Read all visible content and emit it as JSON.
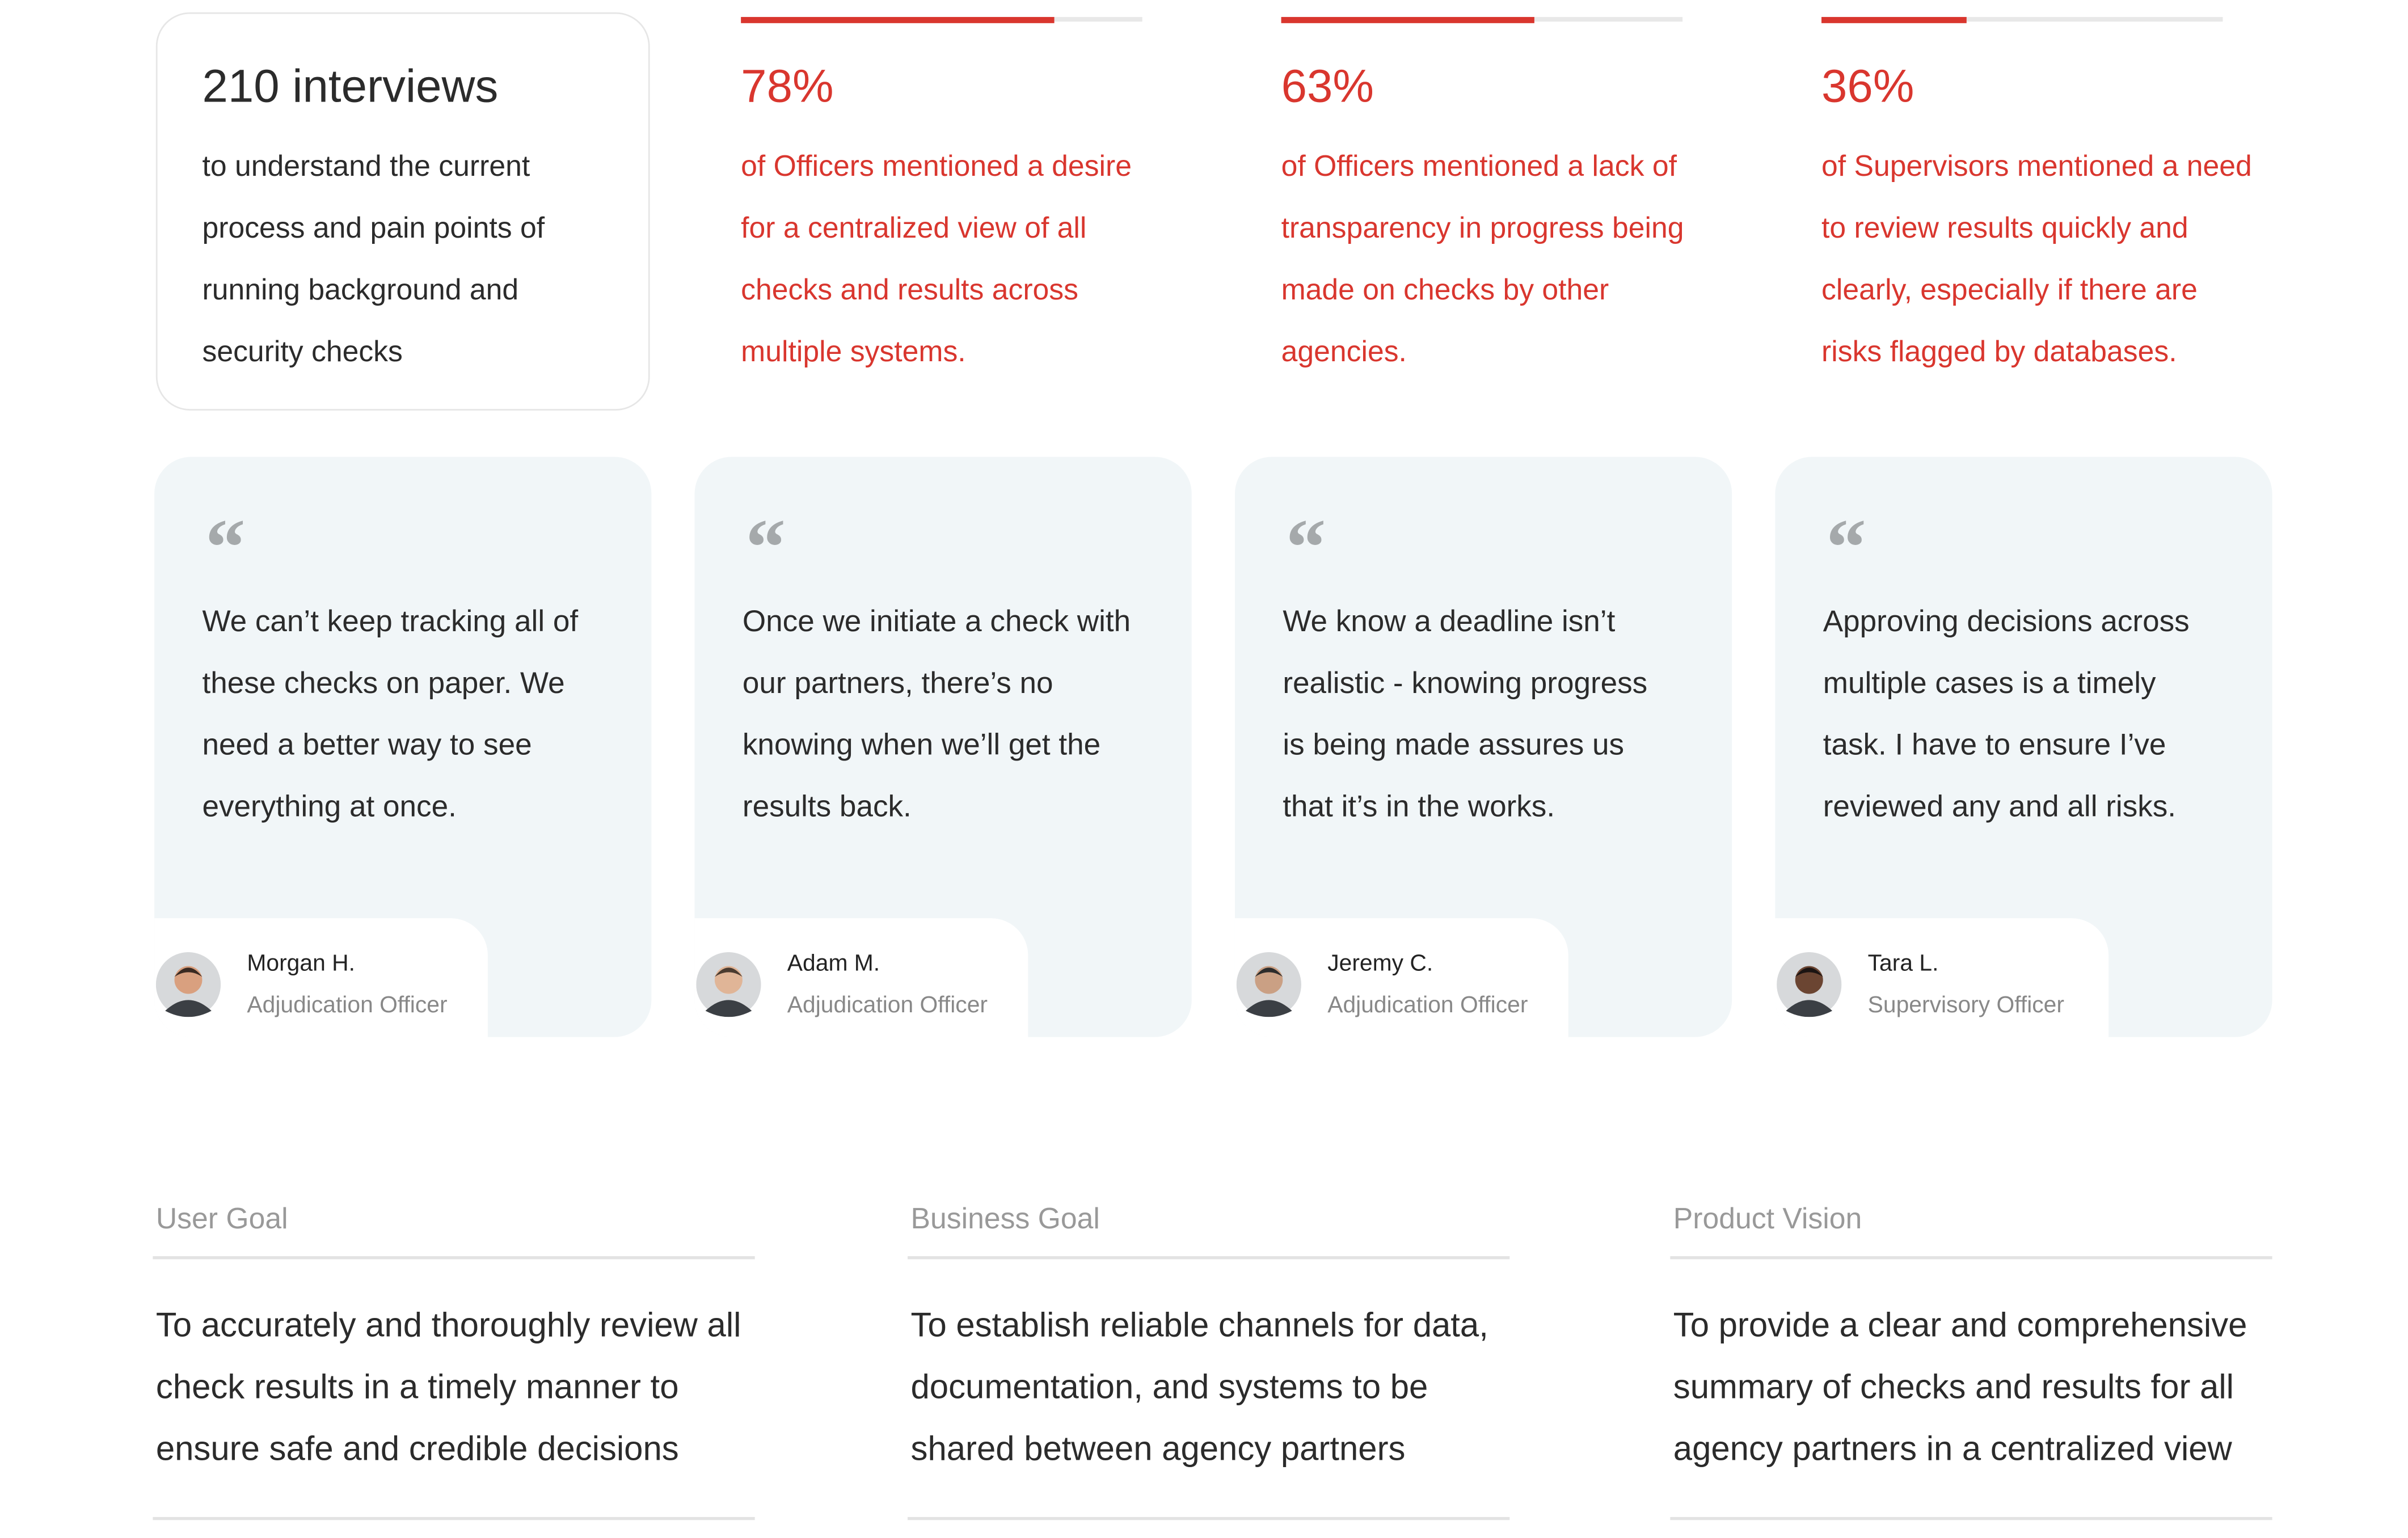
{
  "summary": {
    "headline": "210 interviews",
    "text": "to understand the current process and pain points of running background and security checks"
  },
  "stats": [
    {
      "percent": 78,
      "percent_label": "78%",
      "text": "of Officers mentioned a desire for a centralized view of all checks and results across multiple systems."
    },
    {
      "percent": 63,
      "percent_label": "63%",
      "text": "of Officers mentioned a lack of transparency in progress being made on checks by other agencies."
    },
    {
      "percent": 36,
      "percent_label": "36%",
      "text": "of Supervisors mentioned a need to review results quickly and clearly, especially if there are risks flagged by databases."
    }
  ],
  "quotes": [
    {
      "mark": "“",
      "text": "We can’t keep tracking all of these checks on paper. We need a better way to see everything at once.",
      "name": "Morgan H.",
      "role": "Adjudication Officer"
    },
    {
      "mark": "“",
      "text": "Once we initiate a check with our partners, there’s no knowing when we’ll get the results back.",
      "name": "Adam M.",
      "role": "Adjudication Officer"
    },
    {
      "mark": "“",
      "text": "We know a deadline isn’t realistic - knowing progress is being made assures us that it’s in the works.",
      "name": "Jeremy C.",
      "role": "Adjudication Officer"
    },
    {
      "mark": "“",
      "text": "Approving decisions across multiple cases is a timely task. I have to ensure I’ve reviewed any and all risks.",
      "name": "Tara L.",
      "role": "Supervisory Officer"
    }
  ],
  "goals": [
    {
      "title": "User Goal",
      "text": "To accurately and thoroughly review all check results in a timely manner to ensure safe and credible decisions"
    },
    {
      "title": "Business Goal",
      "text": "To establish reliable channels for data, documentation, and systems to be shared between agency partners"
    },
    {
      "title": "Product Vision",
      "text": "To provide a clear and comprehensive summary of checks and results for all agency partners in a centralized view"
    }
  ]
}
